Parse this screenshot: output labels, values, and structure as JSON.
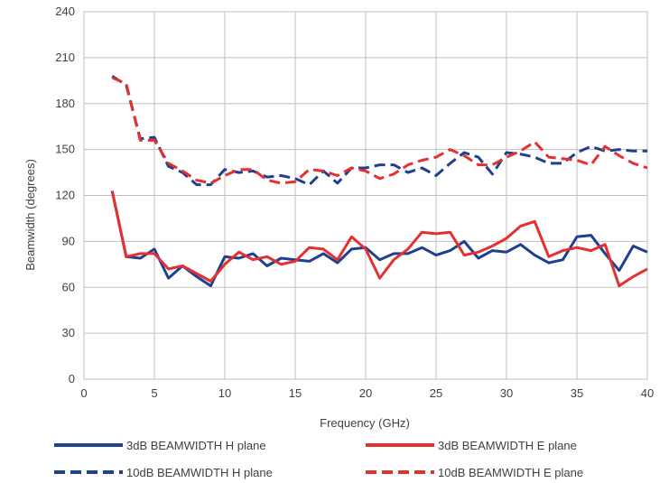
{
  "chart_data": {
    "type": "line",
    "title": "",
    "xlabel": "Frequency (GHz)",
    "ylabel": "Beamwidth (degrees)",
    "xlim": [
      0,
      40
    ],
    "ylim": [
      0,
      240
    ],
    "xticks": [
      0,
      5,
      10,
      15,
      20,
      25,
      30,
      35,
      40
    ],
    "yticks": [
      0,
      30,
      60,
      90,
      120,
      150,
      180,
      210,
      240
    ],
    "grid": true,
    "legend_position": "bottom",
    "x": [
      2,
      3,
      4,
      5,
      6,
      7,
      8,
      9,
      10,
      11,
      12,
      13,
      14,
      15,
      16,
      17,
      18,
      19,
      20,
      21,
      22,
      23,
      24,
      25,
      26,
      27,
      28,
      29,
      30,
      31,
      32,
      33,
      34,
      35,
      36,
      37,
      38,
      39,
      40
    ],
    "series": [
      {
        "name": "3dB BEAMWIDTH H plane",
        "color": "#1f3f8f",
        "dash": "solid",
        "values": [
          123,
          80,
          79,
          85,
          66,
          74,
          67,
          61,
          80,
          79,
          82,
          74,
          79,
          78,
          77,
          82,
          76,
          85,
          86,
          78,
          82,
          82,
          86,
          81,
          84,
          90,
          79,
          84,
          83,
          88,
          81,
          76,
          78,
          93,
          94,
          82,
          71,
          87,
          83
        ]
      },
      {
        "name": "3dB BEAMWIDTH E plane",
        "color": "#e53030",
        "dash": "solid",
        "values": [
          123,
          80,
          82,
          82,
          72,
          74,
          69,
          64,
          75,
          83,
          78,
          80,
          75,
          77,
          86,
          85,
          78,
          93,
          85,
          66,
          78,
          85,
          96,
          95,
          96,
          81,
          83,
          87,
          92,
          100,
          103,
          80,
          84,
          86,
          84,
          88,
          61,
          67,
          72
        ]
      },
      {
        "name": "10dB BEAMWIDTH H plane",
        "color": "#1f3f8f",
        "dash": "dashed",
        "values": [
          198,
          192,
          157,
          158,
          139,
          135,
          127,
          127,
          137,
          135,
          136,
          132,
          133,
          131,
          127,
          136,
          128,
          138,
          138,
          140,
          140,
          135,
          138,
          133,
          141,
          148,
          145,
          134,
          148,
          147,
          145,
          141,
          141,
          148,
          152,
          149,
          150,
          149,
          149
        ]
      },
      {
        "name": "10dB BEAMWIDTH E plane",
        "color": "#e53030",
        "dash": "dashed",
        "values": [
          197,
          193,
          156,
          156,
          141,
          136,
          130,
          128,
          133,
          137,
          137,
          130,
          128,
          129,
          137,
          136,
          133,
          138,
          136,
          131,
          134,
          140,
          143,
          145,
          150,
          146,
          140,
          140,
          145,
          149,
          155,
          145,
          144,
          143,
          140,
          152,
          146,
          141,
          138
        ]
      }
    ]
  }
}
